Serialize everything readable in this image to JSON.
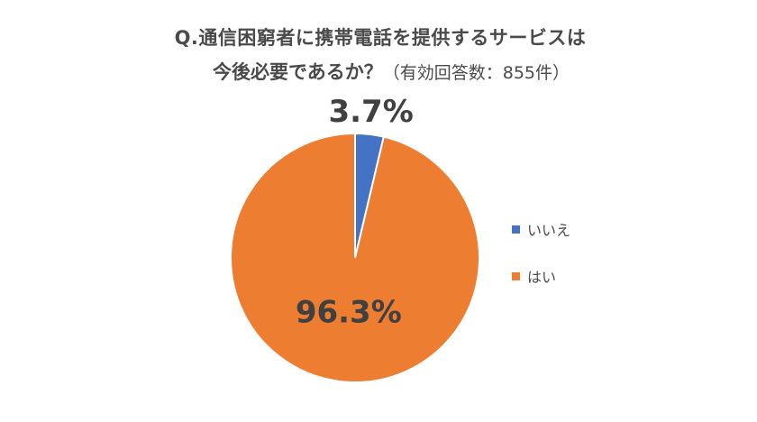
{
  "chart_data": {
    "type": "pie",
    "title_line1": "Q.通信困窮者に携帯電話を提供するサービスは",
    "title_line2": "今後必要であるか？",
    "title_note": "（有効回答数：855件）",
    "slices": [
      {
        "name": "いいえ",
        "value": 3.7,
        "label": "3.7%",
        "color": "#4472C4"
      },
      {
        "name": "はい",
        "value": 96.3,
        "label": "96.3%",
        "color": "#ED7D31"
      }
    ],
    "start_angle_deg": 0,
    "direction": "clockwise",
    "legend_position": "right"
  }
}
